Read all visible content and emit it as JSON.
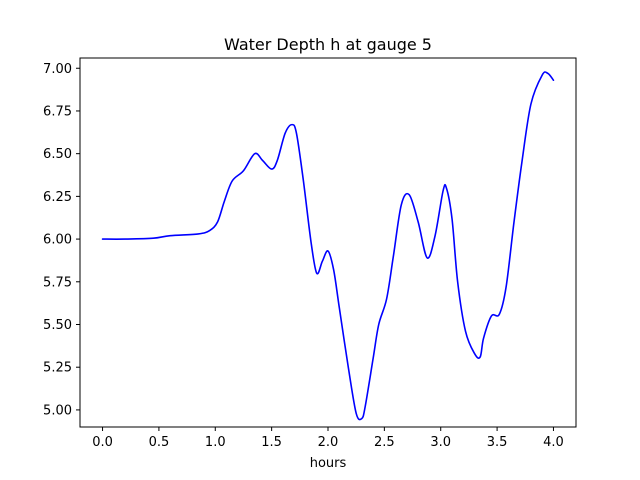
{
  "chart_data": {
    "type": "line",
    "title": "Water Depth h at gauge 5",
    "xlabel": "hours",
    "ylabel": "",
    "xlim": [
      -0.2,
      4.2
    ],
    "ylim": [
      4.9,
      7.06
    ],
    "grid": false,
    "legend": "none",
    "x_ticks": [
      0.0,
      0.5,
      1.0,
      1.5,
      2.0,
      2.5,
      3.0,
      3.5,
      4.0
    ],
    "x_tick_labels": [
      "0.0",
      "0.5",
      "1.0",
      "1.5",
      "2.0",
      "2.5",
      "3.0",
      "3.5",
      "4.0"
    ],
    "y_ticks": [
      5.0,
      5.25,
      5.5,
      5.75,
      6.0,
      6.25,
      6.5,
      6.75,
      7.0
    ],
    "y_tick_labels": [
      "5.00",
      "5.25",
      "5.50",
      "5.75",
      "6.00",
      "6.25",
      "6.50",
      "6.75",
      "7.00"
    ],
    "series": [
      {
        "color": "#0000ff",
        "x": [
          0.0,
          0.2,
          0.45,
          0.6,
          0.85,
          0.95,
          1.02,
          1.08,
          1.15,
          1.25,
          1.35,
          1.42,
          1.5,
          1.55,
          1.62,
          1.68,
          1.72,
          1.78,
          1.85,
          1.9,
          1.95,
          2.0,
          2.05,
          2.1,
          2.18,
          2.25,
          2.3,
          2.33,
          2.4,
          2.45,
          2.52,
          2.58,
          2.65,
          2.72,
          2.8,
          2.88,
          2.95,
          3.02,
          3.05,
          3.1,
          3.15,
          3.22,
          3.3,
          3.35,
          3.38,
          3.45,
          3.52,
          3.58,
          3.65,
          3.72,
          3.8,
          3.9,
          3.95,
          4.0
        ],
        "y": [
          6.0,
          6.0,
          6.005,
          6.02,
          6.03,
          6.05,
          6.1,
          6.22,
          6.34,
          6.4,
          6.5,
          6.46,
          6.41,
          6.46,
          6.62,
          6.67,
          6.62,
          6.35,
          5.98,
          5.8,
          5.87,
          5.93,
          5.82,
          5.6,
          5.25,
          4.98,
          4.95,
          5.02,
          5.3,
          5.5,
          5.65,
          5.9,
          6.2,
          6.26,
          6.1,
          5.89,
          6.02,
          6.28,
          6.3,
          6.12,
          5.75,
          5.46,
          5.33,
          5.31,
          5.42,
          5.55,
          5.56,
          5.72,
          6.1,
          6.45,
          6.79,
          6.96,
          6.97,
          6.93
        ]
      }
    ]
  }
}
